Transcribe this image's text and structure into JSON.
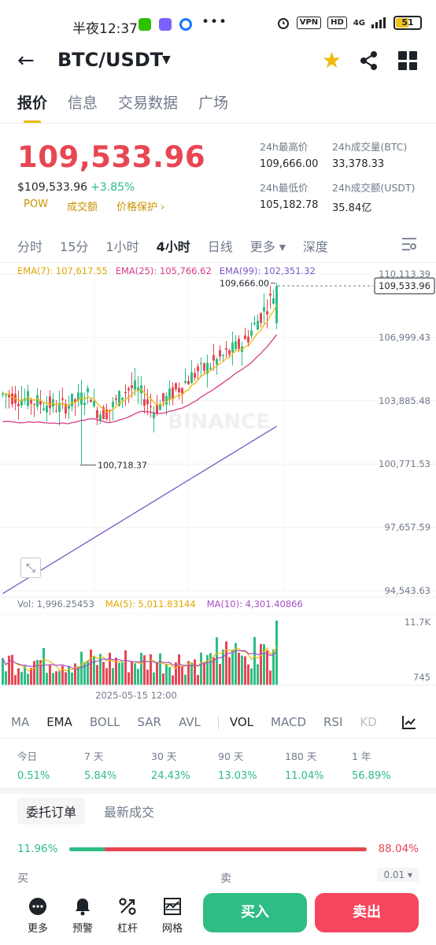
{
  "status_bar": {
    "time": "半夜12:37",
    "dots": "•••",
    "vpn": "VPN",
    "hd": "HD",
    "net": "4G",
    "battery": "51"
  },
  "header": {
    "pair": "BTC/USDT",
    "caret": "▼",
    "star": "★"
  },
  "tabs": [
    "报价",
    "信息",
    "交易数据",
    "广场"
  ],
  "price": {
    "last": "109,533.96",
    "usd": "$109,533.96",
    "change": "+3.85%",
    "tags": [
      "POW",
      "成交额",
      "价格保护 ›"
    ]
  },
  "stats": {
    "high_label": "24h最高价",
    "high": "109,666.00",
    "vol_btc_label": "24h成交量(BTC)",
    "vol_btc": "33,378.33",
    "low_label": "24h最低价",
    "low": "105,182.78",
    "vol_usdt_label": "24h成交额(USDT)",
    "vol_usdt": "35.84亿"
  },
  "intervals": [
    "分时",
    "15分",
    "1小时",
    "4小时",
    "日线",
    "更多 ▾",
    "深度"
  ],
  "ema": {
    "e7": "EMA(7): 107,617.55",
    "e25": "EMA(25): 105,766.62",
    "e99": "EMA(99): 102,351.32"
  },
  "colors": {
    "up": "#2ebd85",
    "down": "#e84653",
    "ema7": "#f0b90b",
    "ema25": "#d63d86",
    "ema99": "#7a57c5",
    "accent": "#f0b90b"
  },
  "chart_data": {
    "type": "candlestick",
    "price_axis_ticks": [
      "110,113.39",
      "106,999.43",
      "103,885.48",
      "100,771.53",
      "97,657.59",
      "94,543.63"
    ],
    "price_axis_range": [
      94543.63,
      110113.39
    ],
    "high_marker": "109,666.00",
    "low_marker": "100,718.37",
    "last_price_tag": "109,533.96",
    "x_label": "2025-05-15 12:00",
    "watermark": "BINANCE",
    "volume": {
      "legend_vol": "Vol: 1,996.25453",
      "legend_ma5": "MA(5): 5,011.83144",
      "legend_ma10": "MA(10): 4,301.40866",
      "axis_top": "11.7K",
      "axis_bottom": "745"
    }
  },
  "indicators": [
    "MA",
    "EMA",
    "BOLL",
    "SAR",
    "AVL",
    "VOL",
    "MACD",
    "RSI",
    "KD"
  ],
  "performance": [
    {
      "label": "今日",
      "value": "0.51%"
    },
    {
      "label": "7 天",
      "value": "5.84%"
    },
    {
      "label": "30 天",
      "value": "24.43%"
    },
    {
      "label": "90 天",
      "value": "13.03%"
    },
    {
      "label": "180 天",
      "value": "11.04%"
    },
    {
      "label": "1 年",
      "value": "56.89%"
    }
  ],
  "orderbook": {
    "tabs": [
      "委托订单",
      "最新成交"
    ],
    "buy_pct": "11.96%",
    "sell_pct": "88.04%",
    "buy_ratio": 0.1196,
    "buy_label": "买",
    "sell_label": "卖",
    "precision": "0.01 ▾"
  },
  "bottom": {
    "nav": [
      "更多",
      "预警",
      "杠杆",
      "网格"
    ],
    "buy": "买入",
    "sell": "卖出"
  }
}
